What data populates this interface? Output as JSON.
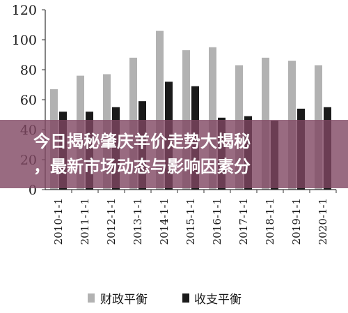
{
  "colors": {
    "series1": "#b2b2b2",
    "series2": "#1a1a1a",
    "banner": "#804662"
  },
  "overlay": {
    "line1": "今日揭秘肇庆羊价走势大揭秘",
    "line2": "，最新市场动态与影响因素分"
  },
  "chart_data": {
    "type": "bar",
    "title": "",
    "xlabel": "",
    "ylabel": "",
    "ylim": [
      0,
      120
    ],
    "yticks": [
      0,
      20,
      40,
      60,
      80,
      100,
      120
    ],
    "grid": false,
    "legend_position": "bottom",
    "categories": [
      "2010-1-1",
      "2011-1-1",
      "2012-1-1",
      "2013-1-1",
      "2014-1-1",
      "2015-1-1",
      "2016-1-1",
      "2017-1-1",
      "2018-1-1",
      "2019-1-1",
      "2020-1-1"
    ],
    "series": [
      {
        "name": "财政平衡",
        "values": [
          67,
          76,
          77,
          88,
          106,
          93,
          95,
          83,
          88,
          86,
          83
        ]
      },
      {
        "name": "收支平衡",
        "values": [
          52,
          52,
          55,
          59,
          72,
          69,
          48,
          49,
          46,
          54,
          55
        ]
      }
    ]
  }
}
